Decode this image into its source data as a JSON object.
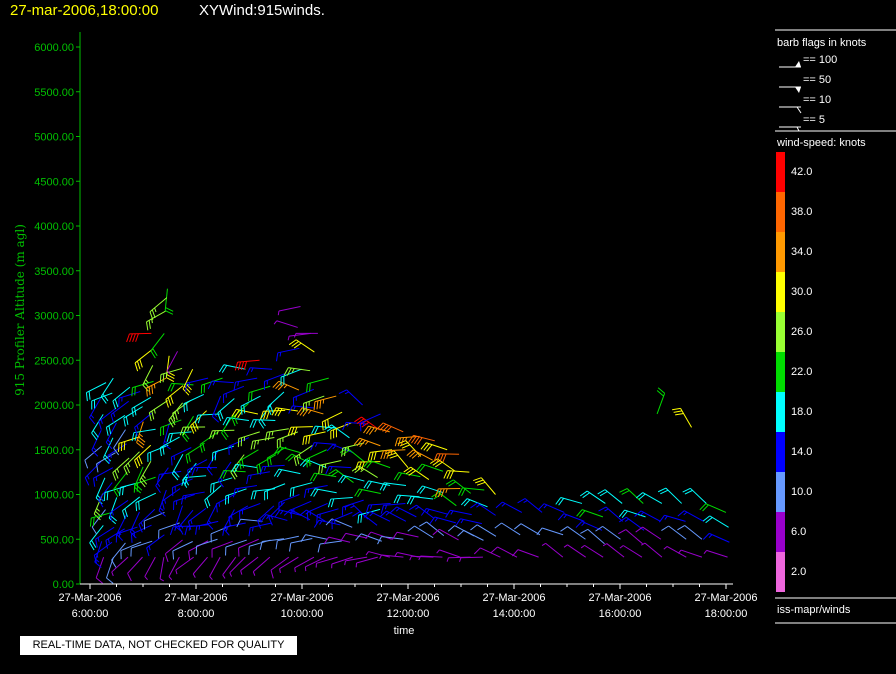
{
  "header": {
    "date": "27-mar-2006,18:00:00",
    "title": "XYWind:915winds."
  },
  "disclaimer": "REAL-TIME DATA, NOT CHECKED FOR QUALITY",
  "legend": {
    "barb_title": "barb flags in knots",
    "barb_entries": [
      "== 100",
      "== 50",
      "== 10",
      "== 5"
    ],
    "speed_title": "wind-speed: knots",
    "speed_bins": [
      {
        "label": "42.0",
        "color": "#ff0000"
      },
      {
        "label": "38.0",
        "color": "#ff6600"
      },
      {
        "label": "34.0",
        "color": "#ff9900"
      },
      {
        "label": "30.0",
        "color": "#ffff00"
      },
      {
        "label": "26.0",
        "color": "#99ff33"
      },
      {
        "label": "22.0",
        "color": "#00dd00"
      },
      {
        "label": "18.0",
        "color": "#00ffff"
      },
      {
        "label": "14.0",
        "color": "#0000ff"
      },
      {
        "label": "10.0",
        "color": "#6699ff"
      },
      {
        "label": "6.0",
        "color": "#9900cc"
      },
      {
        "label": "2.0",
        "color": "#ee66dd"
      }
    ],
    "source": "iss-mapr/winds"
  },
  "chart_data": {
    "type": "scatter",
    "ylabel": "915 Profiler Altitude (m agl)",
    "xlabel": "time",
    "ylim": [
      0,
      6200
    ],
    "xlim": [
      6.0,
      18.3
    ],
    "yticks": [
      "0.00",
      "500.00",
      "1000.00",
      "1500.00",
      "2000.00",
      "2500.00",
      "3000.00",
      "3500.00",
      "4000.00",
      "4500.00",
      "5000.00",
      "5500.00",
      "6000.00"
    ],
    "ytick_values": [
      0,
      500,
      1000,
      1500,
      2000,
      2500,
      3000,
      3500,
      4000,
      4500,
      5000,
      5500,
      6000
    ],
    "xtick_values": [
      6,
      8,
      10,
      12,
      14,
      16,
      18
    ],
    "xticks": [
      {
        "date": "27-Mar-2006",
        "time": "6:00:00"
      },
      {
        "date": "27-Mar-2006",
        "time": "8:00:00"
      },
      {
        "date": "27-Mar-2006",
        "time": "10:00:00"
      },
      {
        "date": "27-Mar-2006",
        "time": "12:00:00"
      },
      {
        "date": "27-Mar-2006",
        "time": "14:00:00"
      },
      {
        "date": "27-Mar-2006",
        "time": "16:00:00"
      },
      {
        "date": "27-Mar-2006",
        "time": "18:00:00"
      }
    ],
    "color_bins": [
      2,
      6,
      10,
      14,
      18,
      22,
      26,
      30,
      34,
      38,
      42
    ],
    "columns": [
      {
        "t": 6.25,
        "dirs": [
          200,
          210,
          220,
          230
        ],
        "s": [
          8,
          14,
          18,
          10,
          26,
          20,
          14,
          12,
          16,
          18,
          14,
          20
        ],
        "top": 2250
      },
      {
        "t": 6.45,
        "dirs": [
          210,
          220,
          240,
          250
        ],
        "s": [
          10,
          14,
          16,
          22,
          18,
          14,
          14,
          12,
          18,
          14,
          16,
          20,
          18
        ],
        "top": 2300
      },
      {
        "t": 6.7,
        "dirs": [
          220,
          230,
          240
        ],
        "s": [
          6,
          10,
          14,
          16,
          14,
          18,
          22,
          26,
          14,
          12,
          18,
          16,
          20
        ],
        "top": 2200
      },
      {
        "t": 6.95,
        "dirs": [
          210,
          240,
          250
        ],
        "s": [
          8,
          12,
          14,
          16,
          18,
          20,
          22,
          26,
          30,
          34,
          20,
          16
        ],
        "top": 2150
      },
      {
        "t": 7.2,
        "dirs": [
          220,
          240,
          260
        ],
        "s": [
          6,
          10,
          14,
          14,
          18,
          22,
          26,
          30,
          18,
          16,
          20,
          22,
          26,
          30,
          42
        ],
        "top": 2800
      },
      {
        "t": 7.45,
        "dirs": [
          200,
          230,
          250
        ],
        "s": [
          6,
          14,
          12,
          16,
          14,
          18,
          14,
          26,
          34,
          30,
          22,
          26,
          22
        ],
        "top": 3300
      },
      {
        "t": 7.7,
        "dirs": [
          210,
          230,
          250
        ],
        "s": [
          6,
          8,
          10,
          14,
          16,
          14,
          18,
          20,
          22,
          26,
          30,
          26,
          6
        ],
        "top": 2600
      },
      {
        "t": 7.95,
        "dirs": [
          220,
          240,
          260
        ],
        "s": [
          6,
          10,
          14,
          16,
          14,
          14,
          18,
          16,
          18,
          22,
          26,
          22,
          30
        ],
        "top": 2400
      },
      {
        "t": 8.2,
        "dirs": [
          230,
          250,
          270
        ],
        "s": [
          6,
          8,
          14,
          14,
          16,
          18,
          14,
          22,
          26,
          30,
          18,
          14
        ],
        "top": 2300
      },
      {
        "t": 8.45,
        "dirs": [
          210,
          240,
          260
        ],
        "s": [
          6,
          10,
          14,
          16,
          18,
          14,
          14,
          22,
          18,
          14,
          22
        ],
        "top": 2300
      },
      {
        "t": 8.7,
        "dirs": [
          220,
          240,
          260
        ],
        "s": [
          6,
          8,
          12,
          14,
          16,
          20,
          14,
          18,
          26,
          22,
          18,
          14
        ],
        "top": 2250
      },
      {
        "t": 8.95,
        "dirs": [
          230,
          250,
          270
        ],
        "s": [
          6,
          10,
          14,
          16,
          18,
          22,
          26,
          14,
          18,
          22,
          14,
          18
        ],
        "top": 2400
      },
      {
        "t": 9.2,
        "dirs": [
          240,
          260,
          280
        ],
        "s": [
          6,
          8,
          12,
          14,
          16,
          18,
          22,
          26,
          30,
          18,
          14,
          42
        ],
        "top": 2500
      },
      {
        "t": 9.45,
        "dirs": [
          230,
          250,
          270
        ],
        "s": [
          6,
          10,
          14,
          16,
          18,
          14,
          22,
          26,
          18,
          20,
          22,
          14
        ],
        "top": 2400
      },
      {
        "t": 9.7,
        "dirs": [
          240,
          260,
          280
        ],
        "s": [
          8,
          12,
          14,
          16,
          18,
          14,
          22,
          26,
          30,
          18,
          14
        ],
        "top": 2350
      },
      {
        "t": 9.95,
        "dirs": [
          250,
          270,
          290
        ],
        "s": [
          6,
          10,
          14,
          14,
          18,
          22,
          26,
          30,
          34,
          18,
          14,
          6,
          6
        ],
        "top": 3100
      },
      {
        "t": 10.2,
        "dirs": [
          250,
          270,
          290
        ],
        "s": [
          6,
          10,
          14,
          16,
          18,
          22,
          26,
          30,
          14,
          14,
          26,
          30,
          6
        ],
        "top": 2800
      },
      {
        "t": 10.45,
        "dirs": [
          250,
          270,
          290
        ],
        "s": [
          6,
          10,
          14,
          16,
          14,
          18,
          22,
          30,
          34,
          26,
          22
        ],
        "top": 2300
      },
      {
        "t": 10.7,
        "dirs": [
          250,
          270,
          290
        ],
        "s": [
          6,
          10,
          14,
          14,
          18,
          22,
          26,
          14,
          18,
          30,
          34
        ],
        "top": 2100
      },
      {
        "t": 10.95,
        "dirs": [
          260,
          280,
          300
        ],
        "s": [
          6,
          8,
          10,
          14,
          18,
          22,
          14,
          14,
          18,
          30
        ],
        "top": 1800
      },
      {
        "t": 11.2,
        "dirs": [
          260,
          280,
          300
        ],
        "s": [
          6,
          8,
          14,
          14,
          18,
          22,
          26,
          14,
          14
        ],
        "top": 2000
      },
      {
        "t": 11.45,
        "dirs": [
          260,
          280,
          300
        ],
        "s": [
          6,
          10,
          14,
          18,
          22,
          26,
          30,
          34,
          42,
          14
        ],
        "top": 1900
      },
      {
        "t": 11.7,
        "dirs": [
          270,
          290,
          300
        ],
        "s": [
          6,
          8,
          14,
          14,
          18,
          22,
          30,
          34
        ],
        "top": 1700
      },
      {
        "t": 11.95,
        "dirs": [
          270,
          290,
          310
        ],
        "s": [
          6,
          10,
          14,
          16,
          18,
          30,
          34,
          38
        ],
        "top": 1700
      },
      {
        "t": 12.2,
        "dirs": [
          270,
          290,
          310
        ],
        "s": [
          6,
          8,
          14,
          18,
          22,
          30,
          34
        ],
        "top": 1650
      },
      {
        "t": 12.45,
        "dirs": [
          270,
          290,
          310
        ],
        "s": [
          6,
          10,
          14,
          18,
          30,
          34,
          38
        ],
        "top": 1600
      },
      {
        "t": 12.7,
        "dirs": [
          280,
          300
        ],
        "s": [
          6,
          10,
          14,
          18,
          22,
          30
        ],
        "top": 1500
      },
      {
        "t": 12.95,
        "dirs": [
          280,
          300
        ],
        "s": [
          6,
          8,
          14,
          22,
          34,
          30,
          38
        ],
        "top": 1450
      },
      {
        "t": 13.2,
        "dirs": [
          280,
          300
        ],
        "s": [
          6,
          10,
          14,
          22,
          30
        ],
        "top": 1250
      },
      {
        "t": 13.45,
        "dirs": [
          280,
          300
        ],
        "s": [
          6,
          10,
          14,
          18,
          22
        ],
        "top": 1050
      },
      {
        "t": 13.7,
        "dirs": [
          290,
          310
        ],
        "s": [
          8,
          10,
          14,
          30
        ],
        "top": 1000
      },
      {
        "t": 14.1,
        "dirs": [
          300
        ],
        "s": [
          8,
          10,
          14
        ],
        "top": 800
      },
      {
        "t": 14.5,
        "dirs": [
          300
        ],
        "s": [
          8,
          10,
          14
        ],
        "top": 800
      },
      {
        "t": 14.9,
        "dirs": [
          300
        ],
        "s": [
          6,
          10,
          14
        ],
        "top": 800
      },
      {
        "t": 15.3,
        "dirs": [
          300
        ],
        "s": [
          6,
          10,
          14,
          18
        ],
        "top": 900
      },
      {
        "t": 15.7,
        "dirs": [
          300
        ],
        "s": [
          6,
          10,
          14,
          22,
          18
        ],
        "top": 900
      },
      {
        "t": 16.05,
        "dirs": [
          300
        ],
        "s": [
          6,
          10,
          14,
          18
        ],
        "top": 900
      },
      {
        "t": 16.45,
        "dirs": [
          300
        ],
        "s": [
          6,
          8,
          14,
          18,
          22
        ],
        "top": 900
      },
      {
        "t": 16.8,
        "dirs": [
          300
        ],
        "s": [
          6,
          8,
          14,
          18
        ],
        "top": 900
      },
      {
        "t": 17.2,
        "dirs": [
          300
        ],
        "s": [
          6,
          10,
          14,
          18
        ],
        "top": 900
      },
      {
        "t": 17.6,
        "dirs": [
          300
        ],
        "s": [
          6,
          10,
          14,
          18
        ],
        "top": 900
      },
      {
        "t": 18.05,
        "dirs": [
          300
        ],
        "s": [
          6,
          14,
          18,
          22
        ],
        "top": 800
      }
    ],
    "isolated": [
      {
        "t": 16.7,
        "alt": 1900,
        "dir": 20,
        "s": 22
      },
      {
        "t": 17.35,
        "alt": 1750,
        "dir": 330,
        "s": 30
      },
      {
        "t": 7.45,
        "alt": 3200,
        "dir": 230,
        "s": 26
      },
      {
        "t": 10.3,
        "alt": 2800,
        "dir": 270,
        "s": 6
      }
    ]
  }
}
